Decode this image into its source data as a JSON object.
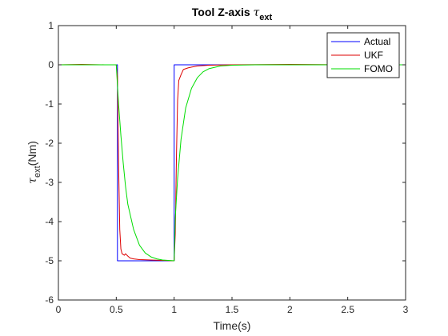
{
  "chart_data": {
    "type": "line",
    "title": "Tool Z-axis",
    "title_symbol": "τ",
    "title_subscript": "ext",
    "xlabel": "Time(s)",
    "ylabel_symbol": "τ",
    "ylabel_subscript": "ext",
    "ylabel_unit": "(Nm)",
    "xlim": [
      0,
      3
    ],
    "ylim": [
      -6,
      1
    ],
    "xticks": [
      "0",
      "0.5",
      "1",
      "1.5",
      "2",
      "2.5",
      "3"
    ],
    "yticks": [
      "1",
      "0",
      "-1",
      "-2",
      "-3",
      "-4",
      "-5",
      "-6"
    ],
    "grid": false,
    "legend_position": "top-right",
    "series": [
      {
        "name": "Actual",
        "color": "#0000ff",
        "points": [
          [
            0,
            0
          ],
          [
            0.51,
            0
          ],
          [
            0.51,
            -5
          ],
          [
            1.0,
            -5
          ],
          [
            1.0,
            0
          ],
          [
            3.0,
            0
          ]
        ]
      },
      {
        "name": "UKF",
        "color": "#dd0000",
        "points": [
          [
            0,
            0
          ],
          [
            0.2,
            0.01
          ],
          [
            0.4,
            0
          ],
          [
            0.5,
            0
          ],
          [
            0.51,
            -0.3
          ],
          [
            0.52,
            -2.5
          ],
          [
            0.53,
            -4.2
          ],
          [
            0.54,
            -4.7
          ],
          [
            0.55,
            -4.82
          ],
          [
            0.57,
            -4.86
          ],
          [
            0.58,
            -4.82
          ],
          [
            0.6,
            -4.88
          ],
          [
            0.62,
            -4.93
          ],
          [
            0.65,
            -4.95
          ],
          [
            0.7,
            -4.97
          ],
          [
            0.8,
            -4.98
          ],
          [
            0.9,
            -4.99
          ],
          [
            1.0,
            -5.0
          ],
          [
            1.01,
            -4.3
          ],
          [
            1.02,
            -2.3
          ],
          [
            1.03,
            -0.9
          ],
          [
            1.04,
            -0.4
          ],
          [
            1.06,
            -0.25
          ],
          [
            1.08,
            -0.12
          ],
          [
            1.1,
            -0.1
          ],
          [
            1.12,
            -0.08
          ],
          [
            1.15,
            -0.06
          ],
          [
            1.2,
            -0.03
          ],
          [
            1.3,
            -0.01
          ],
          [
            1.5,
            0
          ],
          [
            2.0,
            0.01
          ],
          [
            2.5,
            0
          ],
          [
            3.0,
            0
          ]
        ]
      },
      {
        "name": "FOMO",
        "color": "#00dd00",
        "points": [
          [
            0,
            0
          ],
          [
            0.5,
            0
          ],
          [
            0.52,
            -1.0
          ],
          [
            0.54,
            -1.8
          ],
          [
            0.56,
            -2.5
          ],
          [
            0.58,
            -3.1
          ],
          [
            0.6,
            -3.56
          ],
          [
            0.65,
            -4.2
          ],
          [
            0.7,
            -4.6
          ],
          [
            0.75,
            -4.8
          ],
          [
            0.8,
            -4.9
          ],
          [
            0.85,
            -4.95
          ],
          [
            0.9,
            -4.98
          ],
          [
            1.0,
            -5.0
          ],
          [
            1.01,
            -3.9
          ],
          [
            1.03,
            -2.9
          ],
          [
            1.06,
            -1.9
          ],
          [
            1.1,
            -1.1
          ],
          [
            1.15,
            -0.6
          ],
          [
            1.2,
            -0.33
          ],
          [
            1.25,
            -0.18
          ],
          [
            1.3,
            -0.1
          ],
          [
            1.4,
            -0.03
          ],
          [
            1.5,
            -0.01
          ],
          [
            1.7,
            0
          ],
          [
            3.0,
            0
          ]
        ]
      }
    ]
  }
}
